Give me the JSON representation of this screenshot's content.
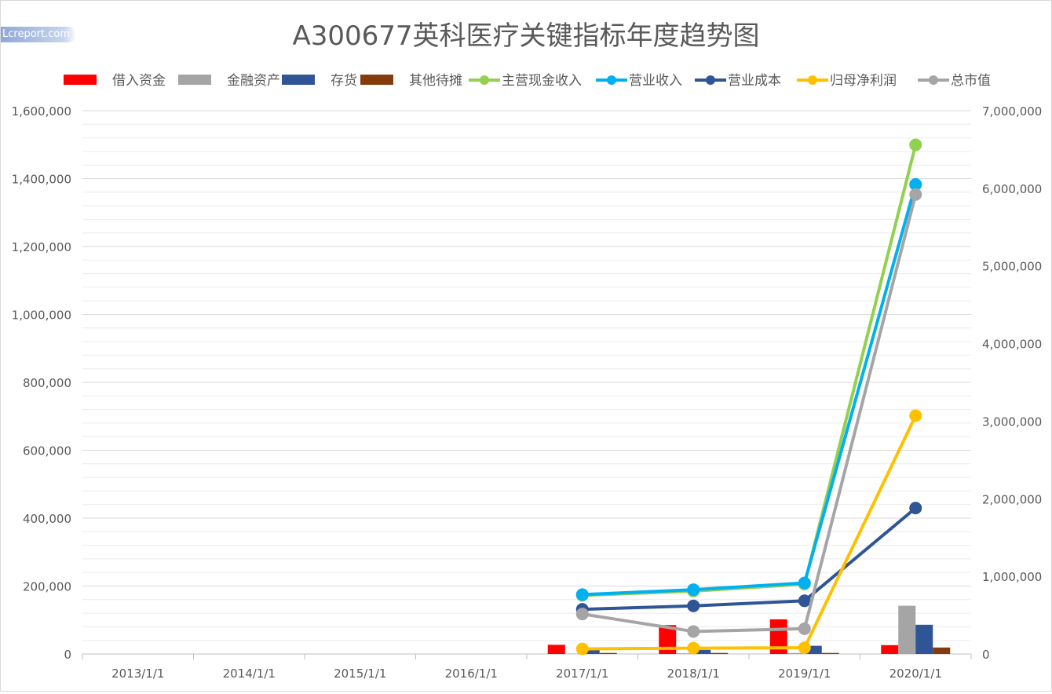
{
  "watermark": "Lcreport.com",
  "chart_data": {
    "type": "bar+line",
    "title": "A300677英科医疗关键指标年度趋势图",
    "categories": [
      "2013/1/1",
      "2014/1/1",
      "2015/1/1",
      "2016/1/1",
      "2017/1/1",
      "2018/1/1",
      "2019/1/1",
      "2020/1/1"
    ],
    "legend_position": "top",
    "grid": true,
    "y_left": {
      "min": 0,
      "max": 1600000,
      "major_step": 200000,
      "minor_step": 40000,
      "tick_labels": [
        "0",
        "200,000",
        "400,000",
        "600,000",
        "800,000",
        "1,000,000",
        "1,200,000",
        "1,400,000",
        "1,600,000"
      ]
    },
    "y_right": {
      "min": 0,
      "max": 7000000,
      "step": 1000000,
      "tick_labels": [
        "0",
        "1,000,000",
        "2,000,000",
        "3,000,000",
        "4,000,000",
        "5,000,000",
        "6,000,000",
        "7,000,000"
      ]
    },
    "bar_series": [
      {
        "name": "借入资金",
        "color": "#ff0000",
        "axis": "left",
        "values": [
          null,
          null,
          null,
          null,
          27000,
          85000,
          102000,
          26000
        ]
      },
      {
        "name": "金融资产",
        "color": "#a5a5a5",
        "axis": "left",
        "values": [
          null,
          null,
          null,
          null,
          1000,
          2000,
          3000,
          142000
        ]
      },
      {
        "name": "存货",
        "color": "#2f5597",
        "axis": "left",
        "values": [
          null,
          null,
          null,
          null,
          13000,
          12000,
          24000,
          86000
        ]
      },
      {
        "name": "其他待摊",
        "color": "#843c0c",
        "axis": "left",
        "values": [
          null,
          null,
          null,
          null,
          3000,
          3000,
          3000,
          19000
        ]
      }
    ],
    "line_series": [
      {
        "name": "主营现金收入",
        "color": "#92d050",
        "axis": "right",
        "values": [
          null,
          null,
          null,
          null,
          755000,
          810000,
          900000,
          6560000
        ]
      },
      {
        "name": "营业收入",
        "color": "#00b0f0",
        "axis": "right",
        "values": [
          null,
          null,
          null,
          null,
          765000,
          828000,
          915000,
          6050000
        ]
      },
      {
        "name": "营业成本",
        "color": "#2f5597",
        "axis": "right",
        "values": [
          null,
          null,
          null,
          null,
          575000,
          620000,
          685000,
          1880000
        ]
      },
      {
        "name": "归母净利润",
        "color": "#ffc000",
        "axis": "right",
        "values": [
          null,
          null,
          null,
          null,
          65000,
          75000,
          80000,
          3070000
        ]
      },
      {
        "name": "总市值",
        "color": "#a5a5a5",
        "axis": "right",
        "values": [
          null,
          null,
          null,
          null,
          515000,
          290000,
          325000,
          5920000
        ]
      }
    ]
  }
}
